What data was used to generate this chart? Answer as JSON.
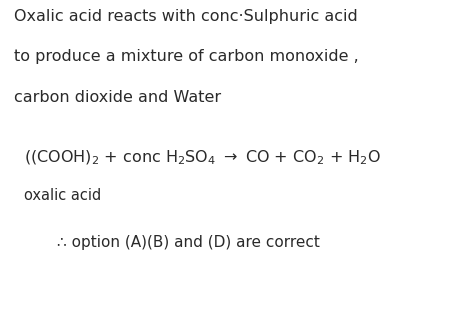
{
  "background_color": "#ffffff",
  "text_color": "#2a2a2a",
  "line1": "Oxalic acid reacts with conc·Sulphuric acid",
  "line2": "to produce a mixture of carbon monoxide ,",
  "line3": "carbon dioxide and Water",
  "label_below": "oxalic acid",
  "conclusion": "∴ option (A)(B) and (D) are correct",
  "font_size_main": 11.5,
  "font_size_eq": 11.5,
  "font_size_label": 10.5,
  "font_size_conclusion": 11.0,
  "fig_width": 4.74,
  "fig_height": 3.09,
  "dpi": 100
}
